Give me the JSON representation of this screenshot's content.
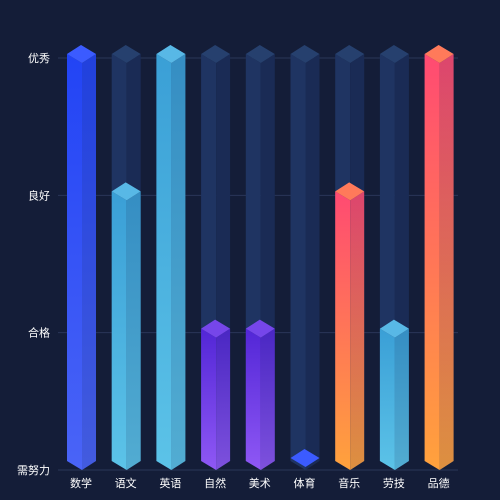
{
  "colors": {
    "background": "#141d38",
    "grid": "#2a3658",
    "track": "#1f3462",
    "track_side": "#1a2b55",
    "track_top": "#26406e"
  },
  "chart_data": {
    "type": "bar",
    "title": "",
    "xlabel": "",
    "ylabel": "",
    "categories": [
      "数学",
      "语文",
      "英语",
      "自然",
      "美术",
      "体育",
      "音乐",
      "劳技",
      "品德"
    ],
    "y_levels": [
      "需努力",
      "合格",
      "良好",
      "优秀"
    ],
    "ylim": [
      0,
      3
    ],
    "values": [
      3,
      2,
      3,
      1,
      1,
      0,
      2,
      1,
      3
    ],
    "bar_colors": [
      {
        "top": "#2244f5",
        "bottom": "#4a64f7",
        "cap": "#3b5bff"
      },
      {
        "top": "#3a9fd6",
        "bottom": "#5cc3e8",
        "cap": "#58b8e6"
      },
      {
        "top": "#3a9fd6",
        "bottom": "#5cc3e8",
        "cap": "#58b8e6"
      },
      {
        "top": "#5226d6",
        "bottom": "#8f58f5",
        "cap": "#7646ea"
      },
      {
        "top": "#5226d6",
        "bottom": "#8f58f5",
        "cap": "#7646ea"
      },
      {
        "top": "#2244f5",
        "bottom": "#4a64f7",
        "cap": "#3b5bff"
      },
      {
        "top": "#ff4a72",
        "bottom": "#ffa23c",
        "cap": "#ff7a5a"
      },
      {
        "top": "#3a9fd6",
        "bottom": "#5cc3e8",
        "cap": "#58b8e6"
      },
      {
        "top": "#ff4a72",
        "bottom": "#ffa23c",
        "cap": "#ff7a5a"
      }
    ]
  }
}
